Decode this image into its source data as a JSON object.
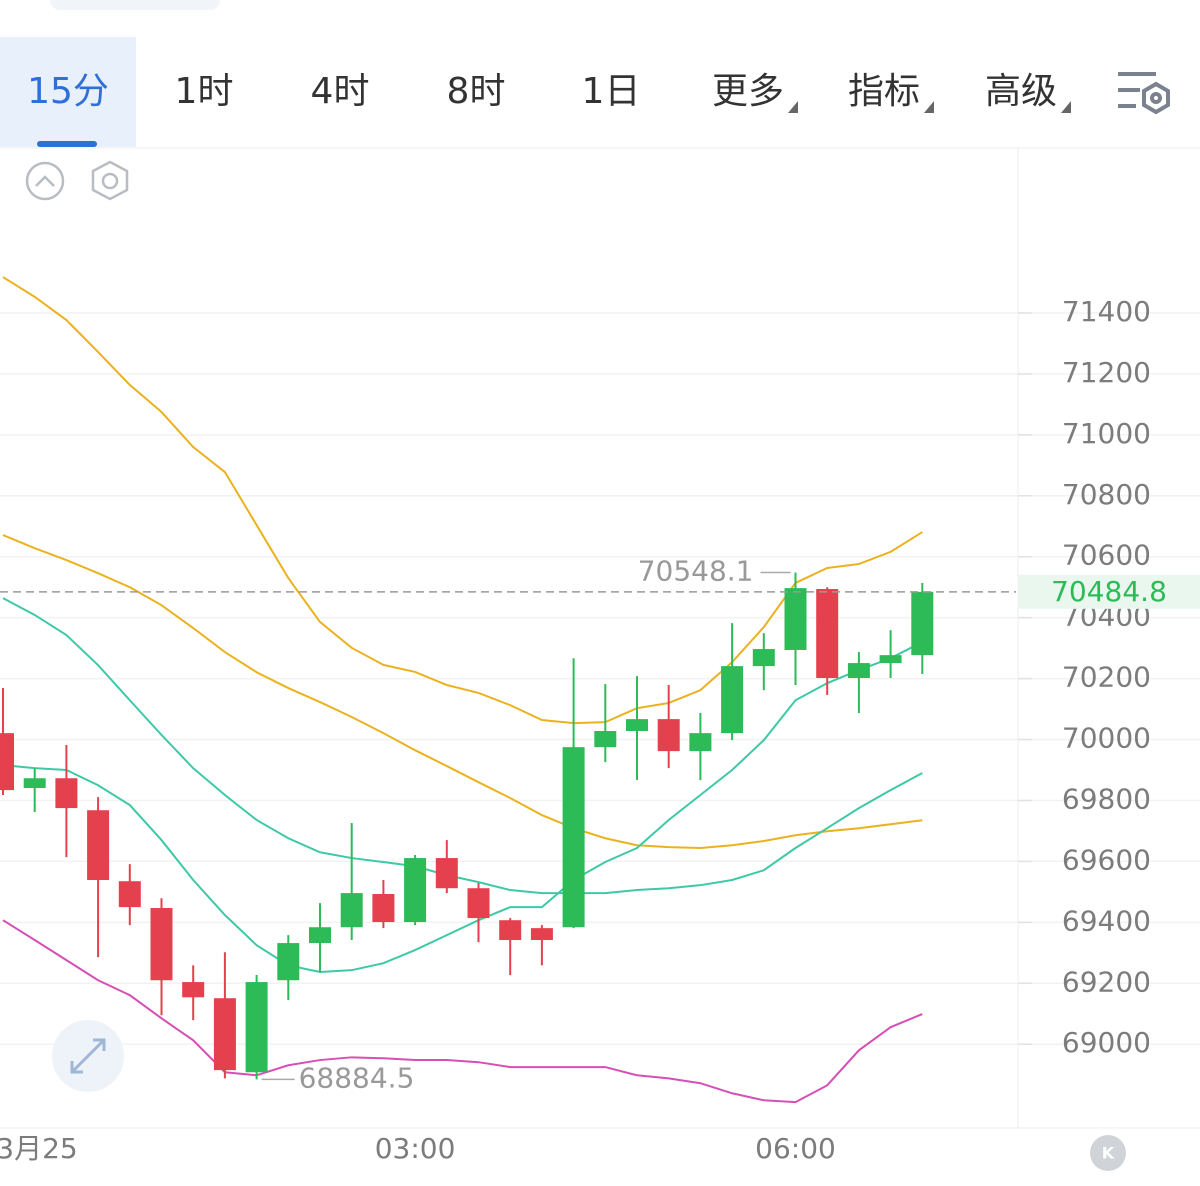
{
  "tabs": [
    "15分",
    "1时",
    "4时",
    "8时",
    "1日",
    "更多",
    "指标",
    "高级"
  ],
  "active_tab": 0,
  "chart_data": {
    "type": "candlestick",
    "categories": [
      null,
      "3月25",
      null,
      null,
      null,
      null,
      null,
      null,
      null,
      null,
      null,
      null,
      null,
      "03:00",
      null,
      null,
      null,
      null,
      null,
      null,
      null,
      null,
      null,
      null,
      null,
      "06:00",
      null,
      null,
      null,
      null
    ],
    "open": [
      70021,
      69841,
      69873,
      69768,
      69535,
      69447,
      69204,
      69151,
      68908,
      69210,
      69332,
      69384,
      69493,
      69401,
      69611,
      69512,
      69407,
      69381,
      69384,
      69975,
      70028,
      70067,
      69962,
      70021,
      70241,
      70294,
      70494,
      70202,
      70251,
      70277
    ],
    "high": [
      70169,
      69906,
      69982,
      69811,
      69591,
      69479,
      69259,
      69302,
      69227,
      69358,
      69463,
      69726,
      69539,
      69621,
      69670,
      69529,
      69414,
      69391,
      70267,
      70182,
      70208,
      70179,
      70087,
      70382,
      70349,
      70548.1,
      70500,
      70287,
      70359,
      70514
    ],
    "low": [
      69818,
      69762,
      69614,
      69286,
      69391,
      69095,
      69079,
      68888,
      68884.5,
      69145,
      69237,
      69342,
      69381,
      69391,
      69496,
      69335,
      69227,
      69259,
      69381,
      69926,
      69867,
      69906,
      69867,
      69998,
      70162,
      70179,
      70146,
      70087,
      70202,
      70215
    ],
    "close": [
      69834,
      69873,
      69775,
      69539,
      69450,
      69210,
      69154,
      68915,
      69204,
      69332,
      69384,
      69496,
      69401,
      69611,
      69512,
      69414,
      69342,
      69342,
      69975,
      70028,
      70067,
      69962,
      70021,
      70241,
      70297,
      70497,
      70202,
      70251,
      70277,
      70484.8
    ],
    "up_color": "#2dbb58",
    "down_color": "#e5404d",
    "lines": [
      {
        "color": "#ebb21f",
        "values": [
          71518,
          71453,
          71377,
          71272,
          71164,
          71075,
          70960,
          70878,
          70704,
          70530,
          70386,
          70301,
          70245,
          70222,
          70179,
          70153,
          70113,
          70064,
          70054,
          70057,
          70103,
          70120,
          70162,
          70254,
          70369,
          70514,
          70563,
          70576,
          70616,
          70681
        ]
      },
      {
        "color": "#ebb21f",
        "values": [
          70671,
          70628,
          70589,
          70546,
          70500,
          70441,
          70366,
          70287,
          70221,
          70169,
          70123,
          70074,
          70021,
          69965,
          69913,
          69860,
          69808,
          69752,
          69709,
          69676,
          69653,
          69647,
          69644,
          69653,
          69667,
          69686,
          69699,
          69709,
          69722,
          69735
        ]
      },
      {
        "color": "#d64fb4",
        "values": [
          69407,
          69342,
          69276,
          69210,
          69161,
          69085,
          69013,
          68908,
          68898,
          68931,
          68948,
          68957,
          68954,
          68948,
          68948,
          68941,
          68925,
          68925,
          68925,
          68925,
          68898,
          68888,
          68872,
          68839,
          68816,
          68810,
          68865,
          68980,
          69056,
          69099
        ]
      },
      {
        "color": "#3ec9a6",
        "values": [
          70464,
          70409,
          70343,
          70244,
          70129,
          70015,
          69906,
          69818,
          69736,
          69676,
          69630,
          69611,
          69598,
          69584,
          69555,
          69532,
          69506,
          69496,
          69496,
          69496,
          69506,
          69512,
          69522,
          69539,
          69571,
          69644,
          69709,
          69775,
          69834,
          69890
        ]
      },
      {
        "color": "#3ec9a6",
        "values": [
          69916,
          69906,
          69900,
          69850,
          69785,
          69670,
          69539,
          69424,
          69325,
          69259,
          69237,
          69243,
          69266,
          69309,
          69358,
          69407,
          69450,
          69450,
          69539,
          69598,
          69644,
          69736,
          69818,
          69900,
          69998,
          70129,
          70185,
          70228,
          70267,
          70320
        ]
      }
    ],
    "ylim": [
      68725,
      71935
    ],
    "yticks": [
      69000,
      69200,
      69400,
      69600,
      69800,
      70000,
      70200,
      70400,
      70600,
      70800,
      71000,
      71200,
      71400
    ],
    "grid": true
  }
}
